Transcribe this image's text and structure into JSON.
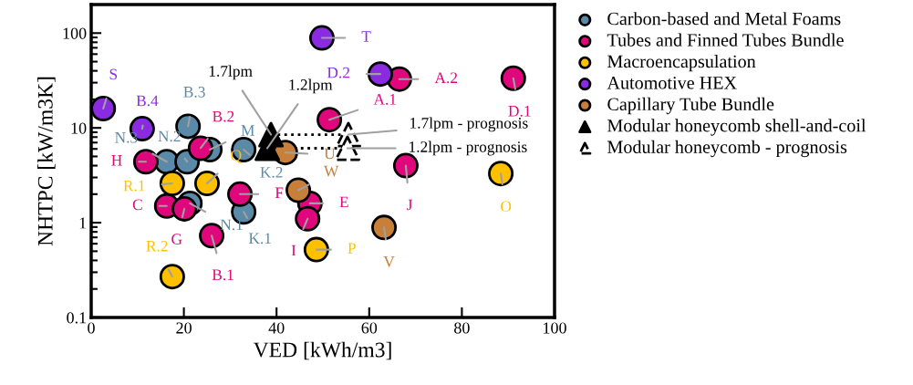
{
  "chart_data": {
    "type": "scatter",
    "xlabel": "VED [kWh/m3]",
    "ylabel": "NHTPC [kW/m3K]",
    "xlim": [
      0,
      100
    ],
    "xticks": [
      0,
      20,
      40,
      60,
      80,
      100
    ],
    "ylim": [
      0.1,
      200
    ],
    "yticks": [
      0.1,
      1,
      10,
      100
    ],
    "log": "y",
    "grid": false,
    "legend": "top right",
    "series": [
      {
        "name": "Carbon-based and Metal Foams",
        "color": "#5b8aa8",
        "marker": "circle",
        "x": [
          20.9,
          16.3,
          20.7,
          25.6,
          32.9,
          21.3,
          32.9
        ],
        "values": [
          10.4,
          4.4,
          4.4,
          5.9,
          5.9,
          1.6,
          1.3
        ],
        "value_labels": [
          "B.3",
          "N.3",
          "N.2",
          "M",
          "K.2",
          "N.1",
          "K.1"
        ]
      },
      {
        "name": "Tubes and Finned Tubes Bundle",
        "color": "#e0077d",
        "marker": "circle",
        "x": [
          11.8,
          23.6,
          16.3,
          20.1,
          26.0,
          32.1,
          47.2,
          46.7,
          51.4,
          66.5,
          91.1,
          67.9
        ],
        "values": [
          4.4,
          6.1,
          1.5,
          1.4,
          0.73,
          2.0,
          1.6,
          1.1,
          12.2,
          32.7,
          33.4,
          4.0
        ],
        "value_labels": [
          "H",
          "B.2",
          "C",
          "G",
          "B.1",
          "F",
          "E",
          "I",
          "A.1",
          "A.2",
          "D.1",
          "J"
        ]
      },
      {
        "name": "Macroencapsulation",
        "color": "#ffc000",
        "marker": "circle",
        "x": [
          17.5,
          25.0,
          17.5,
          48.6,
          88.4
        ],
        "values": [
          2.6,
          2.6,
          0.27,
          0.52,
          3.3
        ],
        "value_labels": [
          "R.1",
          "Q",
          "R.2",
          "P",
          "O"
        ]
      },
      {
        "name": "Automotive HEX",
        "color": "#8a2be2",
        "marker": "circle",
        "x": [
          2.6,
          11.0,
          49.8,
          62.4
        ],
        "values": [
          16.0,
          9.8,
          89,
          37
        ],
        "value_labels": [
          "S",
          "B.4",
          "T",
          "D.2"
        ]
      },
      {
        "name": "Capillary Tube Bundle",
        "color": "#c87f3a",
        "marker": "circle",
        "x": [
          41.9,
          44.7,
          63.2
        ],
        "values": [
          5.5,
          2.2,
          0.89
        ],
        "value_labels": [
          "U",
          "W",
          "V"
        ]
      },
      {
        "type": "line",
        "color": "#000000",
        "marker": "none",
        "line_style": "dotted",
        "x": [
          38.8,
          55.5
        ],
        "values": [
          8.5,
          8.5
        ]
      },
      {
        "type": "line",
        "color": "#000000",
        "marker": "none",
        "line_style": "dotted",
        "x": [
          38.0,
          55.3
        ],
        "values": [
          6.1,
          6.1
        ]
      },
      {
        "name": "Modular honeycomb shell-and-coil",
        "color": "#000000",
        "marker": "triangle",
        "x": [
          38.8,
          38.0
        ],
        "values": [
          8.5,
          6.1
        ]
      },
      {
        "name": "Modular honeycomb - prognosis",
        "color": "#ffffff",
        "marker": "triangle",
        "line_style": "dashed",
        "x": [
          55.5,
          55.3
        ],
        "values": [
          8.5,
          6.1
        ]
      }
    ],
    "annotations": [
      {
        "text": "1.7lpm",
        "x": 38.8,
        "y": 8.5
      },
      {
        "text": "1.2lpm",
        "x": 38.0,
        "y": 6.1
      },
      {
        "text": "1.7lpm - prognosis",
        "x": 55.5,
        "y": 8.5
      },
      {
        "text": "1.2lpm - prognosis",
        "x": 55.3,
        "y": 6.1
      }
    ]
  }
}
